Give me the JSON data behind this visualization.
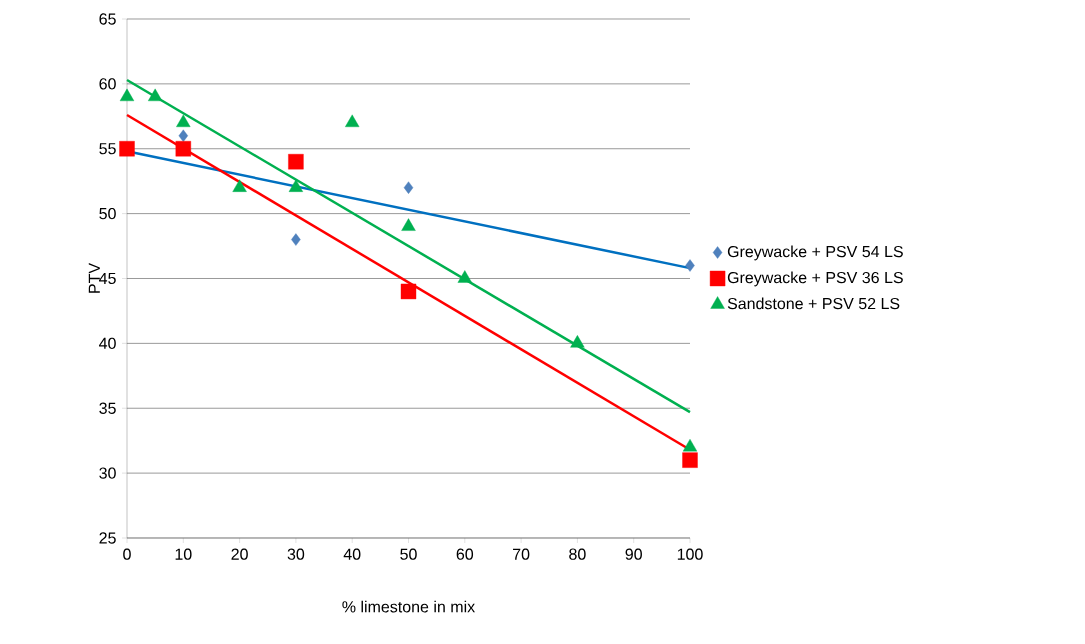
{
  "chart_data": {
    "type": "scatter",
    "xlabel": "% limestone in mix",
    "ylabel": "PTV",
    "xlim": [
      0,
      100
    ],
    "ylim": [
      25,
      65
    ],
    "xticks": [
      0,
      10,
      20,
      30,
      40,
      50,
      60,
      70,
      80,
      90,
      100
    ],
    "yticks": [
      25,
      30,
      35,
      40,
      45,
      50,
      55,
      60,
      65
    ],
    "grid": "y",
    "legend": "right",
    "series": [
      {
        "name": "Greywacke + PSV 54 LS",
        "color": "#4f81bd",
        "marker": "diamond",
        "x": [
          10,
          30,
          50,
          100
        ],
        "values": [
          56,
          48,
          52,
          46
        ]
      },
      {
        "name": "Greywacke + PSV 36 LS",
        "color": "#ff0000",
        "marker": "square",
        "x": [
          0,
          10,
          30,
          50,
          100
        ],
        "values": [
          55,
          55,
          54,
          44,
          31
        ]
      },
      {
        "name": "Sandstone + PSV 52 LS",
        "color": "#00b050",
        "marker": "triangle",
        "x": [
          0,
          5,
          10,
          20,
          30,
          40,
          50,
          60,
          80,
          100
        ],
        "values": [
          59,
          59,
          57,
          52,
          52,
          57,
          49,
          45,
          40,
          32
        ]
      },
      {
        "type": "line",
        "color": "#0070c0",
        "marker": "none",
        "x": [
          0,
          100
        ],
        "values": [
          54.8,
          45.8
        ]
      },
      {
        "type": "line",
        "color": "#ff0000",
        "marker": "none",
        "x": [
          0,
          100
        ],
        "values": [
          57.6,
          31.8
        ]
      },
      {
        "type": "line",
        "color": "#00b050",
        "marker": "none",
        "x": [
          0,
          100
        ],
        "values": [
          60.3,
          34.7
        ]
      }
    ]
  }
}
